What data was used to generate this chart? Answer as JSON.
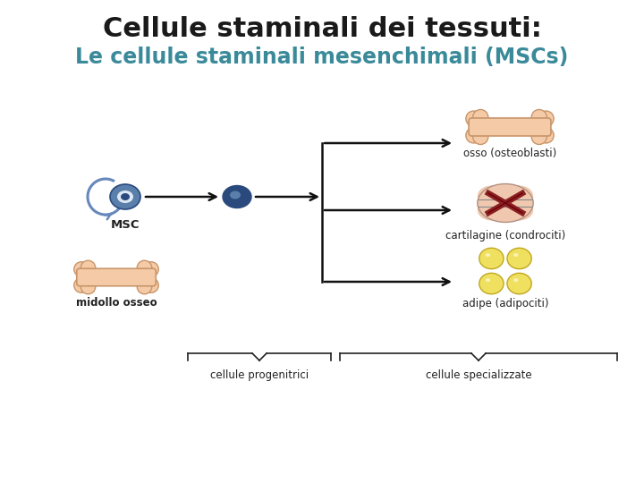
{
  "title": "Cellule staminali dei tessuti:",
  "subtitle": "Le cellule staminali mesenchimali (MSCs)",
  "title_color": "#1a1a1a",
  "subtitle_color": "#3a8a9a",
  "title_fontsize": 22,
  "subtitle_fontsize": 17,
  "bg_color": "#ffffff",
  "label_msc": "MSC",
  "label_midollo": "midollo osseo",
  "label_osso": "osso (osteoblasti)",
  "label_cartilagine": "cartilagine (condrociti)",
  "label_adipe": "adipe (adipociti)",
  "label_progenitori": "cellule progenitrici",
  "label_specializzate": "cellule specializzate",
  "arrow_color": "#111111",
  "text_color": "#222222",
  "bone_color": "#f5cba7",
  "bone_dark": "#c8956a",
  "cell_outer": "#5a7faa",
  "cell_inner": "#dde8f5",
  "cell_nucleus": "#2a4a7e",
  "arc_color": "#6688bb",
  "cartilage_outer": "#f0c8b0",
  "cartilage_inner": "#8b2020",
  "adipe_color": "#f0e060",
  "adipe_border": "#c0a820"
}
